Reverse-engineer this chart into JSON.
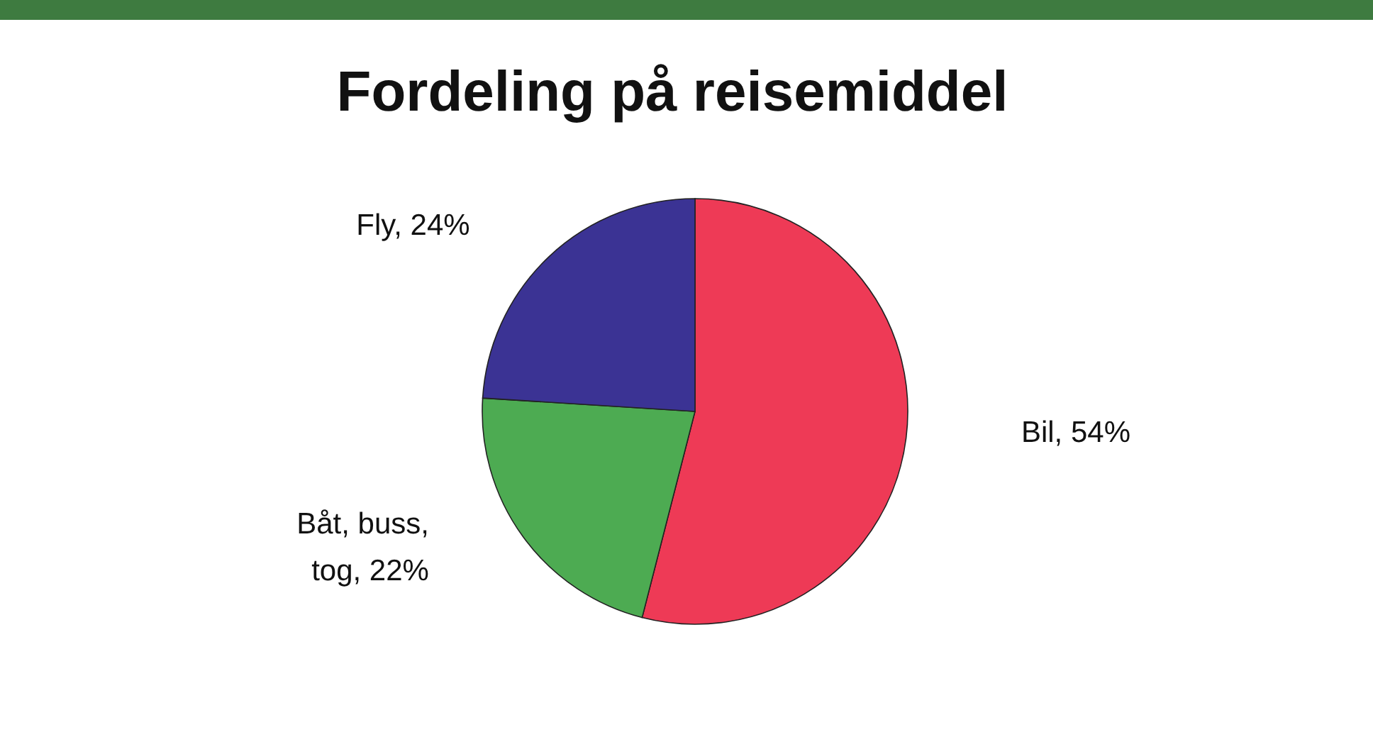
{
  "chart_data": {
    "type": "pie",
    "title": "Fordeling på reisemiddel",
    "categories": [
      "Bil, 54%",
      "Båt, buss, tog, 22%",
      "Fly, 24%"
    ],
    "values": [
      54,
      22,
      24
    ],
    "colors": [
      "#ee3a56",
      "#4dab52",
      "#3b3394"
    ]
  }
}
